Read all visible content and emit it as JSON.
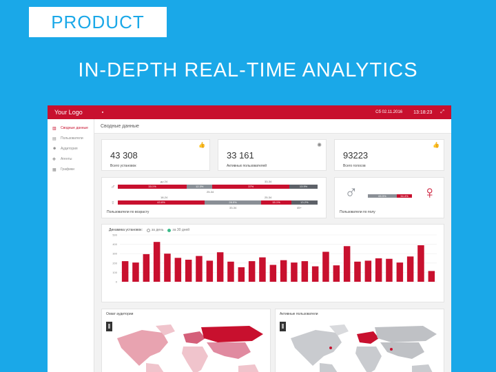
{
  "hero": {
    "badge": "PRODUCT",
    "headline": "IN-DEPTH REAL-TIME ANALYTICS"
  },
  "topbar": {
    "logo": "Your Logo",
    "date": "Сб 02.11.2016",
    "time": "13:18:23"
  },
  "sidebar": {
    "items": [
      {
        "label": "Сводные данные",
        "icon": "chart-icon",
        "active": true
      },
      {
        "label": "Пользователи",
        "icon": "document-icon",
        "active": false
      },
      {
        "label": "Аудитория",
        "icon": "users-icon",
        "active": false
      },
      {
        "label": "Агенты",
        "icon": "handshake-icon",
        "active": false
      },
      {
        "label": "Графики",
        "icon": "calendar-icon",
        "active": false
      }
    ]
  },
  "page": {
    "title": "Сводные данные"
  },
  "stats": [
    {
      "value": "43 308",
      "label": "Всего установок",
      "icon": "thumbs-icon"
    },
    {
      "value": "33 161",
      "label": "Активных пользователей",
      "icon": "lightbulb-icon"
    },
    {
      "value": "93223",
      "label": "Всего голосов",
      "icon": "thumbs-up-icon"
    }
  ],
  "age": {
    "footer": "Пользователи по возрасту",
    "male": {
      "segments": [
        {
          "value": "33.1%",
          "share": 33.1,
          "color": "red"
        },
        {
          "value": "12.3%",
          "share": 12.3,
          "color": "grey"
        },
        {
          "value": "37%",
          "share": 37,
          "color": "red"
        },
        {
          "value": "13.5%",
          "share": 13.5,
          "color": "dark"
        }
      ],
      "labels_top": [
        "до 24",
        "33-34"
      ],
      "labels_bottom": [
        "25-34"
      ]
    },
    "female": {
      "segments": [
        {
          "value": "43.6%",
          "share": 43.6,
          "color": "red"
        },
        {
          "value": "28.5%",
          "share": 28.5,
          "color": "grey"
        },
        {
          "value": "15.1%",
          "share": 15.1,
          "color": "red"
        },
        {
          "value": "13.2%",
          "share": 13.2,
          "color": "dark"
        }
      ],
      "labels_top": [
        "18-24",
        "25-34"
      ],
      "labels_bottom": [
        "33-34",
        "45+"
      ]
    }
  },
  "gender": {
    "footer": "Пользователи по полу",
    "male_value": "65.5%",
    "male_share": 65.5,
    "female_value": "34.4%",
    "female_share": 34.4,
    "colors": {
      "male": "#8a8f96",
      "female": "#c8102e"
    }
  },
  "installs_chart": {
    "title": "Динамика установок:",
    "option_day": "за день",
    "option_30": "за 30 дней"
  },
  "chart_data": {
    "type": "bar",
    "title": "Динамика установок:",
    "xlabel": "",
    "ylabel": "",
    "ylim": [
      0,
      500
    ],
    "yticks": [
      0,
      100,
      200,
      300,
      400,
      500
    ],
    "grid": true,
    "color": "#c8102e",
    "categories": [
      "1",
      "2",
      "3",
      "4",
      "5",
      "6",
      "7",
      "8",
      "9",
      "10",
      "11",
      "12",
      "13",
      "14",
      "15",
      "16",
      "17",
      "18",
      "19",
      "20",
      "21",
      "22",
      "23",
      "24",
      "25",
      "26",
      "27",
      "28",
      "29",
      "30"
    ],
    "values": [
      220,
      205,
      295,
      425,
      300,
      255,
      235,
      275,
      225,
      315,
      215,
      155,
      220,
      260,
      180,
      230,
      205,
      220,
      165,
      320,
      175,
      380,
      215,
      225,
      250,
      245,
      205,
      270,
      390,
      115
    ]
  },
  "maps": [
    {
      "title": "Охват аудитории"
    },
    {
      "title": "Активные пользователи"
    }
  ]
}
